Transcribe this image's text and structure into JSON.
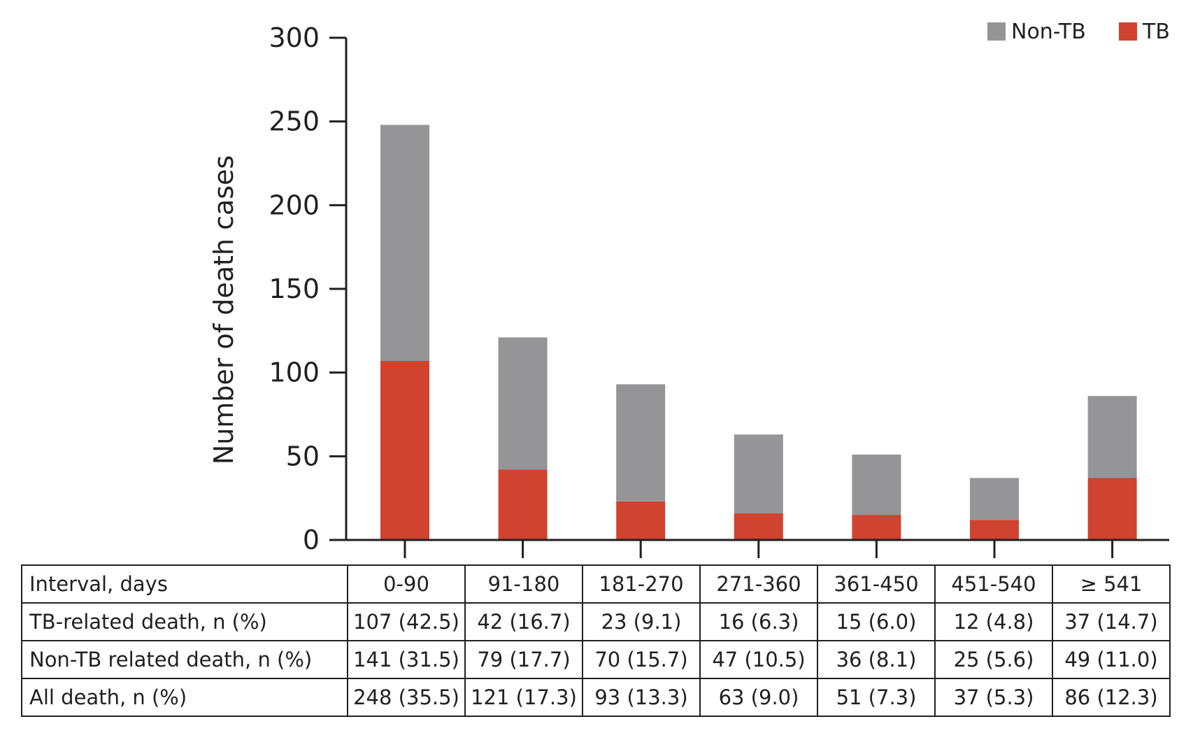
{
  "chart_data": {
    "type": "bar",
    "stacked": true,
    "categories": [
      "0-90",
      "91-180",
      "181-270",
      "271-360",
      "361-450",
      "451-540",
      "≥ 541"
    ],
    "series": [
      {
        "name": "TB",
        "color": "#cf4330",
        "values": [
          107,
          42,
          23,
          16,
          15,
          12,
          37
        ]
      },
      {
        "name": "Non-TB",
        "color": "#959598",
        "values": [
          141,
          79,
          70,
          47,
          36,
          25,
          49
        ]
      }
    ],
    "title": "",
    "xlabel": "",
    "ylabel": "Number of death cases",
    "ylim": [
      0,
      300
    ],
    "yticks": [
      "0",
      "50",
      "100",
      "150",
      "200",
      "250",
      "300"
    ],
    "legend_position": "top-right",
    "legend": [
      "Non-TB",
      "TB"
    ],
    "grid": false
  },
  "table": {
    "header_label": "Interval, days",
    "columns": [
      "0-90",
      "91-180",
      "181-270",
      "271-360",
      "361-450",
      "451-540",
      "≥ 541"
    ],
    "rows": [
      {
        "label": "TB-related death, n (%)",
        "cells": [
          "107 (42.5)",
          "42 (16.7)",
          "23 (9.1)",
          "16 (6.3)",
          "15 (6.0)",
          "12 (4.8)",
          "37 (14.7)"
        ]
      },
      {
        "label": "Non-TB related death, n (%)",
        "cells": [
          "141 (31.5)",
          "79 (17.7)",
          "70 (15.7)",
          "47 (10.5)",
          "36 (8.1)",
          "25 (5.6)",
          "49 (11.0)"
        ]
      },
      {
        "label": "All death, n (%)",
        "cells": [
          "248 (35.5)",
          "121 (17.3)",
          "93 (13.3)",
          "63 (9.0)",
          "51 (7.3)",
          "37 (5.3)",
          "86 (12.3)"
        ]
      }
    ]
  }
}
